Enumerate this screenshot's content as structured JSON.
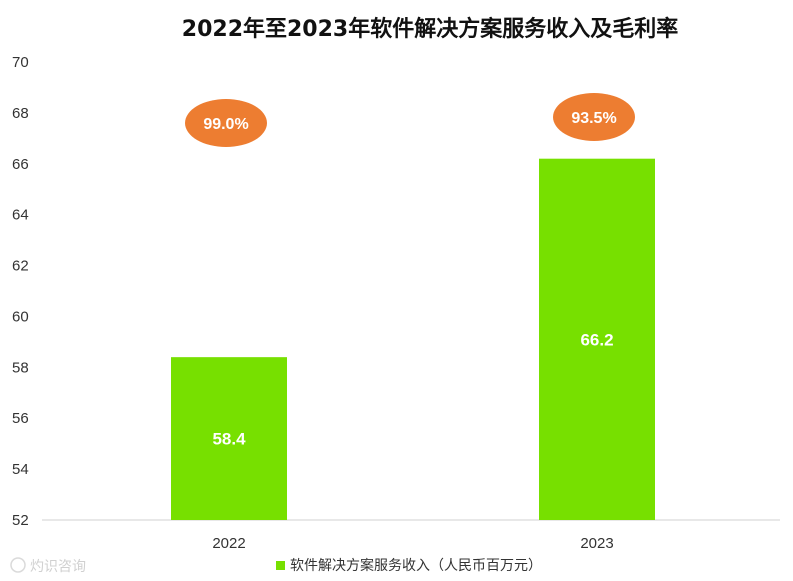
{
  "chart_data": {
    "type": "bar",
    "title": "2022年至2023年软件解决方案服务收入及毛利率",
    "categories": [
      "2022",
      "2023"
    ],
    "series": [
      {
        "name": "软件解决方案服务收入（人民币百万元）",
        "values": [
          58.4,
          66.2
        ],
        "data_labels": [
          "58.4",
          "66.2"
        ],
        "color": "#77e000"
      }
    ],
    "gross_margin_labels": [
      "99.0%",
      "93.5%"
    ],
    "gross_margin_color": "#ed7d31",
    "ylim": [
      52,
      70
    ],
    "yticks": [
      "52",
      "54",
      "56",
      "58",
      "60",
      "62",
      "64",
      "66",
      "68",
      "70"
    ],
    "grid": false,
    "legend_position": "bottom"
  },
  "watermark": "灼识咨询"
}
